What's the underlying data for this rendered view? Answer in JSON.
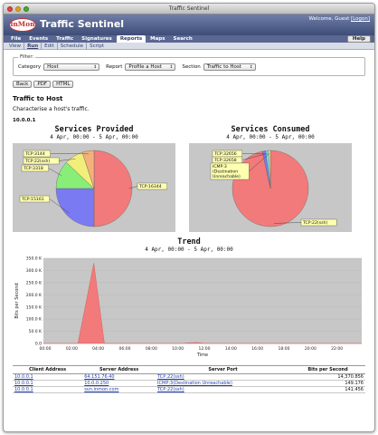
{
  "window": {
    "title": "Traffic Sentinel"
  },
  "header": {
    "logo": "inMon",
    "title": "Traffic Sentinel",
    "welcome": "Welcome, Guest",
    "login": "[Logon]"
  },
  "menu": {
    "items": [
      "File",
      "Events",
      "Traffic",
      "Signatures",
      "Reports",
      "Maps",
      "Search"
    ],
    "active": "Reports",
    "help": "Help"
  },
  "submenu": {
    "items": [
      "View",
      "Run",
      "Edit",
      "Schedule",
      "Script"
    ],
    "active": "Run"
  },
  "filter": {
    "legend": "Filter:",
    "category_label": "Category",
    "category_value": "Host",
    "report_label": "Report",
    "report_value": "Profile a Host",
    "section_label": "Section",
    "section_value": "Traffic to Host",
    "buttons": [
      "Back",
      "PDF",
      "HTML"
    ]
  },
  "report": {
    "title": "Traffic to Host",
    "description": "Characterise a host's traffic.",
    "host": "10.0.0.1"
  },
  "colors": {
    "pie_red": "#f27a7a",
    "pie_blue": "#7a7af2",
    "pie_green": "#88ee77",
    "pie_yellow": "#f2ee7a",
    "trend_red": "#f27a7a",
    "plot_bg": "#c7c7c7"
  },
  "chart_data": [
    {
      "type": "pie",
      "title": "Services Provided",
      "subtitle": "4 Apr, 00:00 - 5 Apr, 00:00",
      "labels": [
        "TCP:16344",
        "TCP:15161",
        "TCP:3318",
        "TCP:22(ssh)",
        "TCP:3144"
      ],
      "values": [
        50,
        25,
        12,
        8,
        5
      ]
    },
    {
      "type": "pie",
      "title": "Services Consumed",
      "subtitle": "4 Apr, 00:00 - 5 Apr, 00:00",
      "labels": [
        "TCP:22(ssh)",
        "TCP:32656",
        "TCP:32658",
        "ICMP:3 (Destination Unreachable)"
      ],
      "values": [
        96.6,
        1.4,
        1.2,
        0.8
      ]
    },
    {
      "type": "area",
      "title": "Trend",
      "subtitle": "4 Apr, 00:00 - 5 Apr, 00:00",
      "xlabel": "Time",
      "ylabel": "Bits per Second",
      "x_ticks": [
        "00:00",
        "02:00",
        "04:00",
        "06:00",
        "08:00",
        "10:00",
        "12:00",
        "14:00",
        "16:00",
        "18:00",
        "20:00",
        "22:00"
      ],
      "y_ticks": [
        "0.0",
        "50.0 K",
        "100.0 K",
        "150.0 K",
        "200.0 K",
        "250.0 K",
        "300.0 K",
        "350.0 K"
      ],
      "ylim": [
        0,
        350000
      ],
      "xlim": [
        0,
        24
      ],
      "series": [
        {
          "values": [
            [
              0,
              0
            ],
            [
              2.6,
              0
            ],
            [
              3.8,
              330000
            ],
            [
              4.6,
              0
            ],
            [
              10.4,
              0
            ],
            [
              11.0,
              3000
            ],
            [
              11.6,
              4000
            ],
            [
              12.2,
              0
            ],
            [
              24,
              0
            ]
          ]
        }
      ]
    }
  ],
  "table": {
    "headers": [
      "Client Address",
      "Server Address",
      "Server Port",
      "Bits per Second"
    ],
    "rows": [
      [
        "10.0.0.1",
        "64.151.76.40",
        "TCP:22(ssh)",
        "14,370.856"
      ],
      [
        "10.0.0.1",
        "10.0.0.250",
        "ICMP:3(Destination Unreachable)",
        "149.176"
      ],
      [
        "10.0.0.1",
        "svn.inmon.com",
        "TCP:22(ssh)",
        "141.456"
      ]
    ]
  }
}
